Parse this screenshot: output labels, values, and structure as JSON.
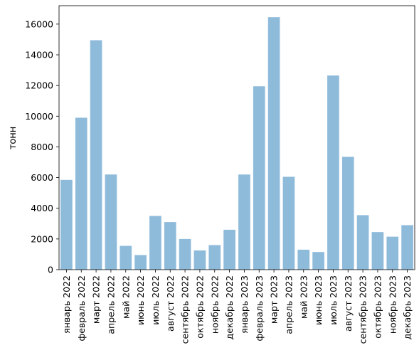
{
  "chart_data": {
    "type": "bar",
    "title": "",
    "xlabel": "",
    "ylabel": "тонн",
    "ylim": [
      0,
      17200
    ],
    "yticks": [
      0,
      2000,
      4000,
      6000,
      8000,
      10000,
      12000,
      14000,
      16000
    ],
    "grid": false,
    "bar_color": "#8fbbdb",
    "categories": [
      "январь 2022",
      "февраль 2022",
      "март 2022",
      "апрель 2022",
      "май 2022",
      "июнь 2022",
      "июль 2022",
      "август 2022",
      "сентябрь 2022",
      "октябрь 2022",
      "ноябрь 2022",
      "декабрь 2022",
      "январь 2023",
      "февраль 2023",
      "март 2023",
      "апрель 2023",
      "май 2023",
      "июнь 2023",
      "июль 2023",
      "август 2023",
      "сентябрь 2023",
      "октябрь 2023",
      "ноябрь 2023",
      "декабрь 2023"
    ],
    "values": [
      5850,
      9900,
      14950,
      6200,
      1550,
      950,
      3500,
      3100,
      2000,
      1250,
      1600,
      2600,
      6200,
      11950,
      16450,
      6050,
      1300,
      1150,
      12650,
      7350,
      3550,
      2450,
      2150,
      2900
    ]
  }
}
